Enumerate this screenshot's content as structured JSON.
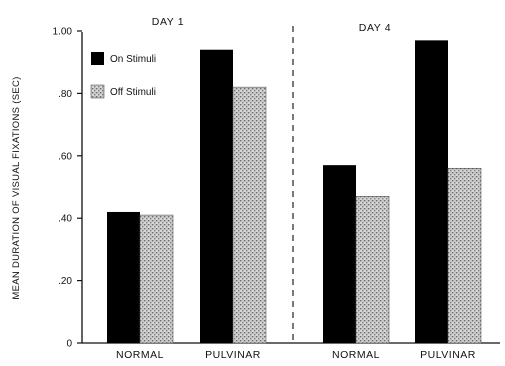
{
  "chart_data": {
    "type": "bar",
    "ylabel": "MEAN DURATION OF VISUAL FIXATIONS (SEC)",
    "ylim": [
      0,
      1.0
    ],
    "yticks": [
      {
        "value": 0,
        "label": "0"
      },
      {
        "value": 0.2,
        "label": ".20"
      },
      {
        "value": 0.4,
        "label": ".40"
      },
      {
        "value": 0.6,
        "label": ".60"
      },
      {
        "value": 0.8,
        "label": ".80"
      },
      {
        "value": 1.0,
        "label": "1.00"
      }
    ],
    "panels": [
      {
        "label": "DAY 1",
        "categories": [
          "NORMAL",
          "PULVINAR"
        ]
      },
      {
        "label": "DAY 4",
        "categories": [
          "NORMAL",
          "PULVINAR"
        ]
      }
    ],
    "series": [
      {
        "name": "On Stimuli",
        "color": "#000000",
        "pattern": "solid",
        "values": [
          0.42,
          0.94,
          0.57,
          0.97
        ]
      },
      {
        "name": "Off Stimuli",
        "color": "#9a9a9a",
        "pattern": "dotted-grey",
        "values": [
          0.41,
          0.82,
          0.47,
          0.56
        ]
      }
    ],
    "legend_position": "top-left",
    "grid": false,
    "panel_divider": "dashed-vertical"
  }
}
